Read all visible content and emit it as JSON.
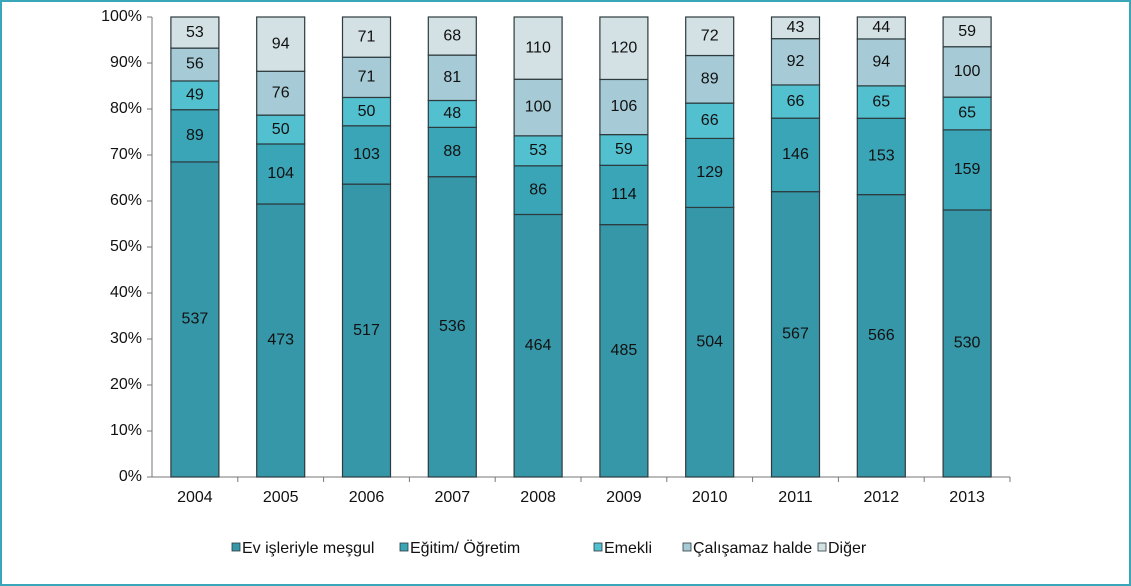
{
  "chart_data": {
    "type": "bar",
    "stacking": "percent",
    "categories": [
      "2004",
      "2005",
      "2006",
      "2007",
      "2008",
      "2009",
      "2010",
      "2011",
      "2012",
      "2013"
    ],
    "series": [
      {
        "name": "Ev işleriyle meşgul",
        "color": "#3697a8",
        "values": [
          537,
          473,
          517,
          536,
          464,
          485,
          504,
          567,
          566,
          530
        ]
      },
      {
        "name": "Eğitim/ Öğretim",
        "color": "#3aa5b7",
        "values": [
          89,
          104,
          103,
          88,
          86,
          114,
          129,
          146,
          153,
          159
        ]
      },
      {
        "name": "Emekli",
        "color": "#52c0cf",
        "values": [
          49,
          50,
          50,
          48,
          53,
          59,
          66,
          66,
          65,
          65
        ]
      },
      {
        "name": "Çalışamaz halde",
        "color": "#a6cbd6",
        "values": [
          56,
          76,
          71,
          81,
          100,
          106,
          89,
          92,
          94,
          100
        ]
      },
      {
        "name": "Diğer",
        "color": "#d3e1e5",
        "values": [
          53,
          94,
          71,
          68,
          110,
          120,
          72,
          43,
          44,
          59
        ]
      }
    ],
    "ylim": [
      0,
      100
    ],
    "yticks": [
      {
        "value": 0,
        "label": "0%"
      },
      {
        "value": 10,
        "label": "10%"
      },
      {
        "value": 20,
        "label": "20%"
      },
      {
        "value": 30,
        "label": "30%"
      },
      {
        "value": 40,
        "label": "40%"
      },
      {
        "value": 50,
        "label": "50%"
      },
      {
        "value": 60,
        "label": "60%"
      },
      {
        "value": 70,
        "label": "70%"
      },
      {
        "value": 80,
        "label": "80%"
      },
      {
        "value": 90,
        "label": "90%"
      },
      {
        "value": 100,
        "label": "100%"
      }
    ],
    "legend": "bottom",
    "grid": false
  }
}
